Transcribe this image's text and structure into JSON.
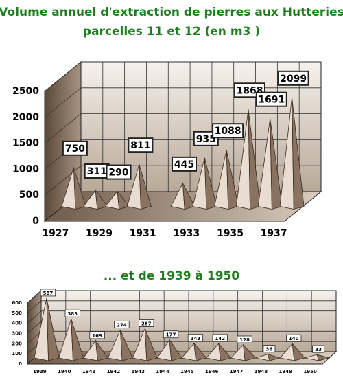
{
  "chart_data": [
    {
      "type": "bar",
      "title": "Volume annuel d'extraction de pierres aux Hutteries",
      "subtitle": "parcelles 11 et 12 (en m3 )",
      "categories": [
        "1927",
        null,
        "1929",
        null,
        "1931",
        null,
        "1933",
        null,
        "1935",
        null,
        "1937"
      ],
      "values": [
        750,
        311,
        290,
        811,
        null,
        445,
        935,
        1088,
        1868,
        1691,
        2099
      ],
      "ylim": [
        0,
        2500
      ],
      "yticks": [
        0,
        500,
        1000,
        1500,
        2000,
        2500
      ],
      "grid": true,
      "color": "#8a7260"
    },
    {
      "type": "bar",
      "title": "... et de 1939 à 1950",
      "categories": [
        "1939",
        "1940",
        "1941",
        "1942",
        "1943",
        "1944",
        "1945",
        "1946",
        "1947",
        "1948",
        "1949",
        "1950"
      ],
      "values": [
        587,
        383,
        169,
        274,
        287,
        177,
        143,
        142,
        128,
        36,
        140,
        33
      ],
      "ylim": [
        0,
        600
      ],
      "yticks": [
        0,
        100,
        200,
        300,
        400,
        500,
        600
      ],
      "grid": true,
      "color": "#8a7260"
    }
  ]
}
